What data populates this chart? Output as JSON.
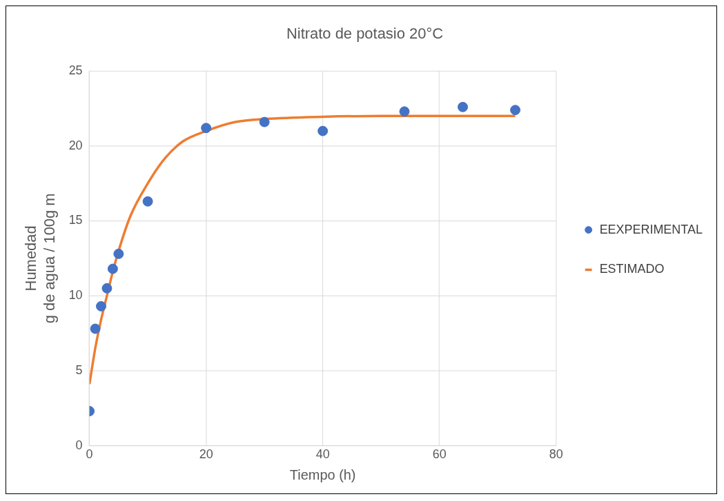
{
  "chart_data": {
    "type": "scatter",
    "title": "Nitrato de potasio 20°C",
    "xlabel": "Tiempo (h)",
    "ylabel": "Humedad\ng de agua / 100g m",
    "xlim": [
      0,
      80
    ],
    "xticks": [
      0,
      20,
      40,
      60,
      80
    ],
    "ylim": [
      0,
      25
    ],
    "yticks": [
      0,
      5,
      10,
      15,
      20,
      25
    ],
    "grid": true,
    "legend": "right",
    "series": [
      {
        "name": "EEXPERIMENTAL",
        "type": "scatter",
        "marker": "circle",
        "color": "#4472c4",
        "x": [
          0,
          1,
          2,
          3,
          4,
          5,
          10,
          20,
          30,
          40,
          54,
          64,
          73
        ],
        "values": [
          2.3,
          7.8,
          9.3,
          10.5,
          11.8,
          12.8,
          16.3,
          21.2,
          21.6,
          21.0,
          22.3,
          22.6,
          22.4
        ]
      },
      {
        "name": "ESTIMADO",
        "type": "line",
        "marker": "none",
        "color": "#ed7d31",
        "x": [
          0,
          1,
          2,
          3,
          4,
          5,
          7,
          10,
          13,
          16,
          20,
          25,
          30,
          40,
          50,
          60,
          73
        ],
        "values": [
          4.1,
          6.5,
          8.4,
          10.0,
          11.6,
          13.0,
          15.3,
          17.5,
          19.2,
          20.3,
          21.0,
          21.6,
          21.8,
          21.95,
          22.0,
          22.0,
          22.0
        ]
      }
    ]
  }
}
